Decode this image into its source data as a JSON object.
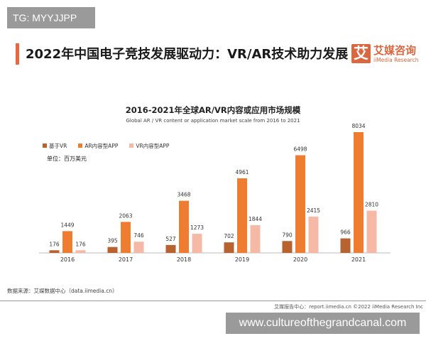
{
  "tag": "TG: MYYJJPP",
  "headline": "2022年中国电子竞技发展驱动力：VR/AR技术助力发展",
  "logo": {
    "mark": "艾",
    "name_cn": "艾媒咨询",
    "name_en": "iiMedia Research"
  },
  "unit": "单位：百万美元",
  "source": "数据来源：艾媒数据中心（data.iimedia.cn）",
  "footer": "艾媒报告中心：report.iimedia.cn  ©2022  iiMedia Research Inc",
  "watermark": "www.cultureofthegrandcanal.com",
  "chart_data": {
    "type": "bar",
    "title": "2016-2021年全球AR/VR内容或应用市场规模",
    "subtitle": "Global AR / VR content or application market scale from 2016 to 2021",
    "categories": [
      "2016",
      "2017",
      "2018",
      "2019",
      "2020",
      "2021"
    ],
    "series": [
      {
        "name": "基于VR",
        "color": "#b8622f",
        "values": [
          176,
          395,
          527,
          702,
          790,
          966
        ]
      },
      {
        "name": "AR内容型APP",
        "color": "#ee7d31",
        "values": [
          1449,
          2063,
          3468,
          4961,
          6498,
          8034
        ]
      },
      {
        "name": "VR内容型APP",
        "color": "#f5b9a6",
        "values": [
          176,
          746,
          1273,
          1844,
          2415,
          2810
        ]
      }
    ],
    "ylim": [
      0,
      8034
    ],
    "grid": false,
    "legend": "top-left"
  }
}
